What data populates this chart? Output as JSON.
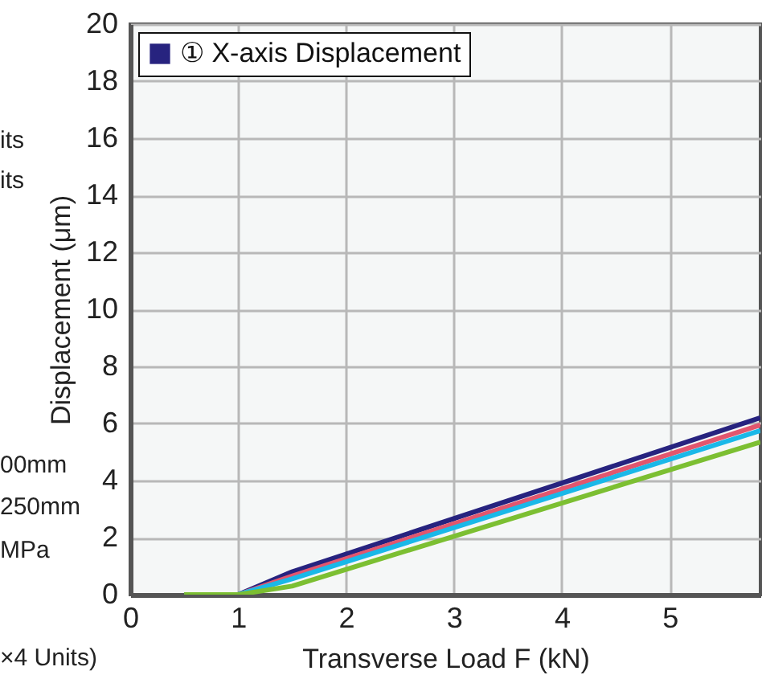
{
  "chart_data": {
    "type": "line",
    "xlabel": "Transverse Load  F (kN)",
    "ylabel": "Displacement (μm)",
    "x": [
      0.5,
      1,
      1.5,
      5.84
    ],
    "series": [
      {
        "name": "① X-axis Displacement",
        "color": "#27237f",
        "values": [
          0,
          0,
          0.8,
          6.2
        ]
      },
      {
        "color": "#e2566e",
        "values": [
          0,
          0,
          0.65,
          5.95
        ]
      },
      {
        "color": "#1ab8e8",
        "values": [
          0,
          0,
          0.55,
          5.75
        ]
      },
      {
        "color": "#7cbf32",
        "values": [
          0,
          0,
          0.3,
          5.35
        ]
      }
    ],
    "xlim": [
      0,
      5.84
    ],
    "xticks": [
      0,
      1,
      2,
      3,
      4,
      5
    ],
    "ylim": [
      0,
      20
    ],
    "yticks": [
      0,
      2,
      4,
      6,
      8,
      10,
      12,
      14,
      16,
      18,
      20
    ],
    "grid": true,
    "legend": "top left",
    "marker": "none",
    "line_style": "solid",
    "annotations": [
      "its",
      "its",
      "00mm",
      "250mm",
      "MPa",
      "×4 Units)"
    ]
  }
}
